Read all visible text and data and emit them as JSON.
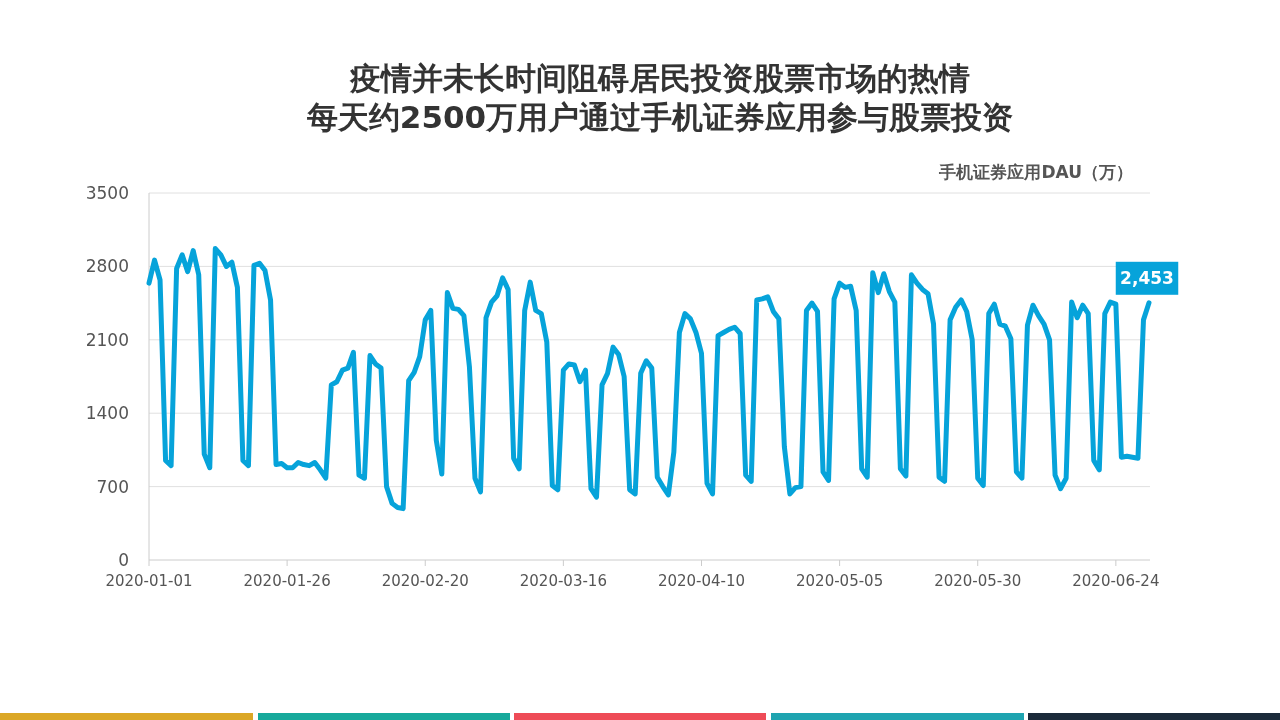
{
  "chart_data": {
    "type": "line",
    "title": "疫情并未长时间阻碍居民投资股票市场的热情",
    "subtitle": "每天约2500万用户通过手机证券应用参与股票投资",
    "ylabel": "手机证券应用DAU（万）",
    "x": [
      "2020-01-01",
      "2020-01-02",
      "2020-01-03",
      "2020-01-04",
      "2020-01-05",
      "2020-01-06",
      "2020-01-07",
      "2020-01-08",
      "2020-01-09",
      "2020-01-10",
      "2020-01-11",
      "2020-01-12",
      "2020-01-13",
      "2020-01-14",
      "2020-01-15",
      "2020-01-16",
      "2020-01-17",
      "2020-01-18",
      "2020-01-19",
      "2020-01-20",
      "2020-01-21",
      "2020-01-22",
      "2020-01-23",
      "2020-01-24",
      "2020-01-25",
      "2020-01-26",
      "2020-01-27",
      "2020-01-28",
      "2020-01-29",
      "2020-01-30",
      "2020-01-31",
      "2020-02-01",
      "2020-02-02",
      "2020-02-03",
      "2020-02-04",
      "2020-02-05",
      "2020-02-06",
      "2020-02-07",
      "2020-02-08",
      "2020-02-09",
      "2020-02-10",
      "2020-02-11",
      "2020-02-12",
      "2020-02-13",
      "2020-02-14",
      "2020-02-15",
      "2020-02-16",
      "2020-02-17",
      "2020-02-18",
      "2020-02-19",
      "2020-02-20",
      "2020-02-21",
      "2020-02-22",
      "2020-02-23",
      "2020-02-24",
      "2020-02-25",
      "2020-02-26",
      "2020-02-27",
      "2020-02-28",
      "2020-02-29",
      "2020-03-01",
      "2020-03-02",
      "2020-03-03",
      "2020-03-04",
      "2020-03-05",
      "2020-03-06",
      "2020-03-07",
      "2020-03-08",
      "2020-03-09",
      "2020-03-10",
      "2020-03-11",
      "2020-03-12",
      "2020-03-13",
      "2020-03-14",
      "2020-03-15",
      "2020-03-16",
      "2020-03-17",
      "2020-03-18",
      "2020-03-19",
      "2020-03-20",
      "2020-03-21",
      "2020-03-22",
      "2020-03-23",
      "2020-03-24",
      "2020-03-25",
      "2020-03-26",
      "2020-03-27",
      "2020-03-28",
      "2020-03-29",
      "2020-03-30",
      "2020-03-31",
      "2020-04-01",
      "2020-04-02",
      "2020-04-03",
      "2020-04-04",
      "2020-04-05",
      "2020-04-06",
      "2020-04-07",
      "2020-04-08",
      "2020-04-09",
      "2020-04-10",
      "2020-04-11",
      "2020-04-12",
      "2020-04-13",
      "2020-04-14",
      "2020-04-15",
      "2020-04-16",
      "2020-04-17",
      "2020-04-18",
      "2020-04-19",
      "2020-04-20",
      "2020-04-21",
      "2020-04-22",
      "2020-04-23",
      "2020-04-24",
      "2020-04-25",
      "2020-04-26",
      "2020-04-27",
      "2020-04-28",
      "2020-04-29",
      "2020-04-30",
      "2020-05-01",
      "2020-05-02",
      "2020-05-03",
      "2020-05-04",
      "2020-05-05",
      "2020-05-06",
      "2020-05-07",
      "2020-05-08",
      "2020-05-09",
      "2020-05-10",
      "2020-05-11",
      "2020-05-12",
      "2020-05-13",
      "2020-05-14",
      "2020-05-15",
      "2020-05-16",
      "2020-05-17",
      "2020-05-18",
      "2020-05-19",
      "2020-05-20",
      "2020-05-21",
      "2020-05-22",
      "2020-05-23",
      "2020-05-24",
      "2020-05-25",
      "2020-05-26",
      "2020-05-27",
      "2020-05-28",
      "2020-05-29",
      "2020-05-30",
      "2020-05-31",
      "2020-06-01",
      "2020-06-02",
      "2020-06-03",
      "2020-06-04",
      "2020-06-05",
      "2020-06-06",
      "2020-06-07",
      "2020-06-08",
      "2020-06-09",
      "2020-06-10",
      "2020-06-11",
      "2020-06-12",
      "2020-06-13",
      "2020-06-14",
      "2020-06-15",
      "2020-06-16",
      "2020-06-17",
      "2020-06-18",
      "2020-06-19",
      "2020-06-20",
      "2020-06-21",
      "2020-06-22",
      "2020-06-23",
      "2020-06-24",
      "2020-06-25",
      "2020-06-26",
      "2020-06-27",
      "2020-06-28",
      "2020-06-29",
      "2020-06-30"
    ],
    "series": [
      {
        "color": "#06a3da",
        "values": [
          2640,
          2860,
          2670,
          950,
          900,
          2780,
          2910,
          2750,
          2950,
          2720,
          1010,
          880,
          2970,
          2910,
          2800,
          2840,
          2600,
          950,
          900,
          2810,
          2830,
          2760,
          2480,
          910,
          920,
          880,
          880,
          930,
          910,
          900,
          930,
          860,
          780,
          1670,
          1700,
          1810,
          1830,
          1980,
          810,
          780,
          1950,
          1870,
          1830,
          700,
          540,
          500,
          490,
          1710,
          1790,
          1940,
          2290,
          2380,
          1140,
          820,
          2550,
          2400,
          2390,
          2330,
          1840,
          780,
          650,
          2310,
          2460,
          2520,
          2690,
          2580,
          970,
          870,
          2380,
          2650,
          2380,
          2350,
          2080,
          710,
          670,
          1810,
          1870,
          1860,
          1700,
          1810,
          680,
          600,
          1670,
          1780,
          2030,
          1960,
          1750,
          670,
          630,
          1780,
          1900,
          1830,
          790,
          700,
          620,
          1030,
          2170,
          2350,
          2300,
          2170,
          1970,
          730,
          630,
          2140,
          2170,
          2200,
          2220,
          2160,
          810,
          750,
          2480,
          2490,
          2510,
          2370,
          2300,
          1080,
          630,
          690,
          700,
          2380,
          2450,
          2370,
          840,
          760,
          2490,
          2640,
          2600,
          2610,
          2380,
          870,
          790,
          2740,
          2550,
          2730,
          2560,
          2460,
          870,
          800,
          2720,
          2640,
          2580,
          2540,
          2250,
          790,
          750,
          2290,
          2410,
          2480,
          2370,
          2100,
          780,
          710,
          2350,
          2440,
          2250,
          2230,
          2110,
          840,
          780,
          2240,
          2430,
          2330,
          2250,
          2100,
          810,
          680,
          780,
          2460,
          2310,
          2430,
          2350,
          950,
          860,
          2350,
          2460,
          2440,
          980,
          990,
          980,
          970,
          2290,
          2453
        ]
      }
    ],
    "xlim": [
      "2020-01-01",
      "2020-06-30"
    ],
    "xticks": [
      "2020-01-01",
      "2020-01-26",
      "2020-02-20",
      "2020-03-16",
      "2020-04-10",
      "2020-05-05",
      "2020-05-30",
      "2020-06-24"
    ],
    "ylim": [
      0,
      3500
    ],
    "yticks": [
      0,
      700,
      1400,
      2100,
      2800,
      3500
    ],
    "grid": "y",
    "annotations": [
      {
        "text": "2,453",
        "x": "2020-06-30",
        "y": 2453
      }
    ]
  }
}
